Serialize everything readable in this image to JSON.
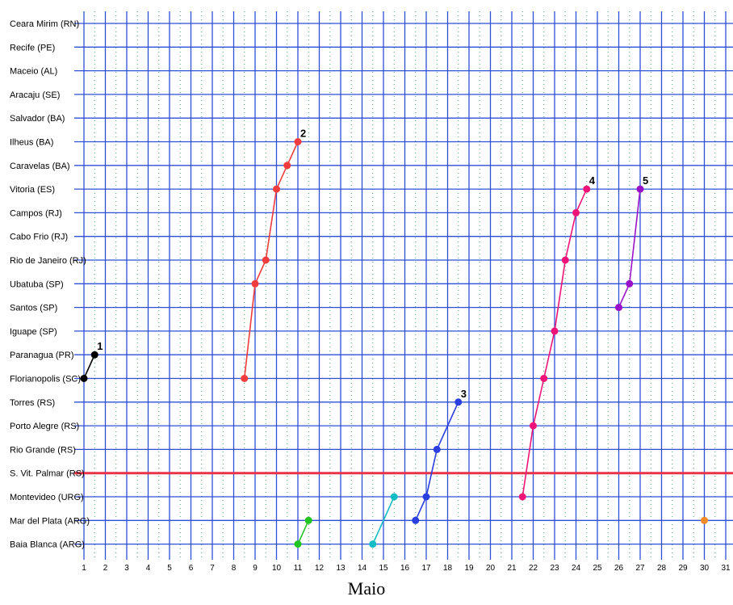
{
  "chart_data": {
    "type": "line",
    "title": "",
    "xlabel": "Maio",
    "ylabel": "",
    "categories_y": [
      "Ceara Mirim (RN)",
      "Recife (PE)",
      "Maceio (AL)",
      "Aracaju (SE)",
      "Salvador (BA)",
      "Ilheus (BA)",
      "Caravelas (BA)",
      "Vitoria (ES)",
      "Campos (RJ)",
      "Cabo Frio (RJ)",
      "Rio de Janeiro (RJ)",
      "Ubatuba (SP)",
      "Santos (SP)",
      "Iguape (SP)",
      "Paranagua (PR)",
      "Florianopolis (SC)",
      "Torres (RS)",
      "Porto Alegre (RS)",
      "Rio Grande (RS)",
      "S. Vit. Palmar (RS)",
      "Montevideo (URG)",
      "Mar del Plata (ARG)",
      "Baia Blanca (ARG)"
    ],
    "x_ticks": [
      "1",
      "2",
      "3",
      "4",
      "5",
      "6",
      "7",
      "8",
      "9",
      "10",
      "11",
      "12",
      "13",
      "14",
      "15",
      "16",
      "17",
      "18",
      "19",
      "20",
      "21",
      "22",
      "23",
      "24",
      "25",
      "26",
      "27",
      "28",
      "29",
      "30",
      "31"
    ],
    "xlim": [
      1,
      31
    ],
    "grid": true,
    "reference_line": {
      "y": "S. Vit. Palmar (RS)",
      "color": "#e8334a"
    },
    "series": [
      {
        "name": "1",
        "color": "#000000",
        "label_pos": "end",
        "points": [
          [
            1,
            "Florianopolis (SC)"
          ],
          [
            1.5,
            "Paranagua (PR)"
          ]
        ]
      },
      {
        "name": "2",
        "color": "#f03c3c",
        "label_pos": "end",
        "points": [
          [
            8.5,
            "Florianopolis (SC)"
          ],
          [
            9,
            "Ubatuba (SP)"
          ],
          [
            9.5,
            "Rio de Janeiro (RJ)"
          ],
          [
            10,
            "Vitoria (ES)"
          ],
          [
            10.5,
            "Caravelas (BA)"
          ],
          [
            11,
            "Ilheus (BA)"
          ]
        ]
      },
      {
        "name": "3",
        "color": "#2b3fe0",
        "label_pos": "end",
        "points": [
          [
            16.5,
            "Mar del Plata (ARG)"
          ],
          [
            17,
            "Montevideo (URG)"
          ],
          [
            17.5,
            "Rio Grande (RS)"
          ],
          [
            18.5,
            "Torres (RS)"
          ]
        ]
      },
      {
        "name": "4",
        "color": "#f01478",
        "label_pos": "end",
        "points": [
          [
            21.5,
            "Montevideo (URG)"
          ],
          [
            22,
            "Porto Alegre (RS)"
          ],
          [
            22.5,
            "Florianopolis (SC)"
          ],
          [
            23,
            "Iguape (SP)"
          ],
          [
            23.5,
            "Rio de Janeiro (RJ)"
          ],
          [
            24,
            "Campos (RJ)"
          ],
          [
            24.5,
            "Vitoria (ES)"
          ]
        ]
      },
      {
        "name": "5",
        "color": "#9a12c8",
        "label_pos": "end",
        "points": [
          [
            26,
            "Santos (SP)"
          ],
          [
            26.5,
            "Ubatuba (SP)"
          ],
          [
            27,
            "Vitoria (ES)"
          ]
        ]
      },
      {
        "name": "",
        "color": "#22c422",
        "points": [
          [
            11,
            "Baia Blanca (ARG)"
          ],
          [
            11.5,
            "Mar del Plata (ARG)"
          ]
        ]
      },
      {
        "name": "",
        "color": "#12bcc4",
        "points": [
          [
            14.5,
            "Baia Blanca (ARG)"
          ],
          [
            15.5,
            "Montevideo (URG)"
          ]
        ]
      },
      {
        "name": "",
        "color": "#f08a24",
        "points": [
          [
            30,
            "Mar del Plata (ARG)"
          ]
        ]
      }
    ]
  }
}
